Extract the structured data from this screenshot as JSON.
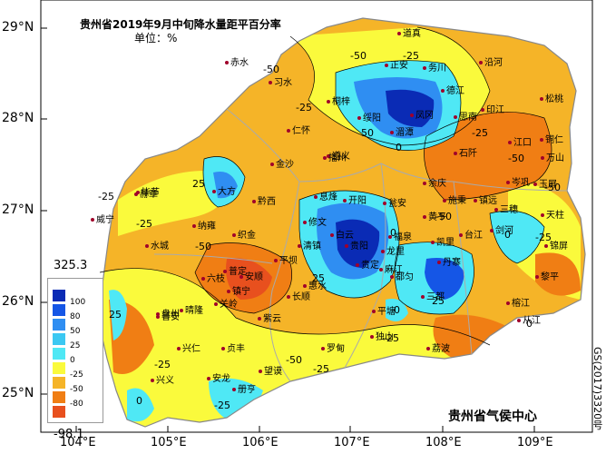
{
  "title": "贵州省2019年9月中旬降水量距平百分率",
  "unit": "单位：%",
  "agency": "贵州省气侯中心",
  "code": "GS(2017)3320号",
  "lat_labels": [
    "29°N",
    "28°N",
    "27°N",
    "26°N",
    "25°N"
  ],
  "lon_labels": [
    "104°E",
    "105°E",
    "106°E",
    "107°E",
    "108°E",
    "109°E"
  ],
  "legend": {
    "max": "325.3",
    "min": "-98.1",
    "levels": [
      {
        "label": "100",
        "color": "#0a2bb5"
      },
      {
        "label": "80",
        "color": "#1556e6"
      },
      {
        "label": "50",
        "color": "#2f8ef2"
      },
      {
        "label": "25",
        "color": "#3bc8f2"
      },
      {
        "label": "0",
        "color": "#4fe8f5"
      },
      {
        "label": "-25",
        "color": "#fafa3c"
      },
      {
        "label": "-50",
        "color": "#f5b428"
      },
      {
        "label": "-80",
        "color": "#f07e14"
      },
      {
        "label": "",
        "color": "#e8501e"
      }
    ]
  },
  "cities": [
    "道真",
    "正安",
    "务川",
    "沿河",
    "赤水",
    "习水",
    "桐梓",
    "绥阳",
    "凤冈",
    "德江",
    "印江",
    "松桃",
    "仁怀",
    "湄潭",
    "思南",
    "江口",
    "铜仁",
    "遵义",
    "石阡",
    "万山",
    "毕节",
    "大方",
    "金沙",
    "播州",
    "余庆",
    "岑巩",
    "玉屏",
    "黔西",
    "息烽",
    "开阳",
    "施秉",
    "镇远",
    "三穗",
    "天柱",
    "威宁",
    "赫章",
    "纳雍",
    "织金",
    "修文",
    "瓮安",
    "黄平",
    "台江",
    "剑河",
    "锦屏",
    "水城",
    "清镇",
    "白云",
    "贵阳",
    "龙里",
    "福泉",
    "凯里",
    "黎平",
    "六枝",
    "普定",
    "安顺",
    "平坝",
    "贵定",
    "麻江",
    "丹寨",
    "榕江",
    "从江",
    "盘州",
    "晴隆",
    "关岭",
    "镇宁",
    "长顺",
    "惠水",
    "都匀",
    "三都",
    "普安",
    "紫云",
    "平塘",
    "兴仁",
    "贞丰",
    "望谟",
    "罗甸",
    "独山",
    "荔波",
    "兴义",
    "安龙",
    "册亨"
  ],
  "contour_labels": [
    "-50",
    "-50",
    "-25",
    "-25",
    "0",
    "25",
    "-50",
    "-25",
    "50",
    "-50",
    "-25",
    "-50",
    "25",
    "0",
    "25",
    "-25",
    "-50",
    "0",
    "-25",
    "-25",
    "25",
    "0",
    "-25",
    "-25",
    "0",
    "-25",
    "-50",
    "0"
  ]
}
